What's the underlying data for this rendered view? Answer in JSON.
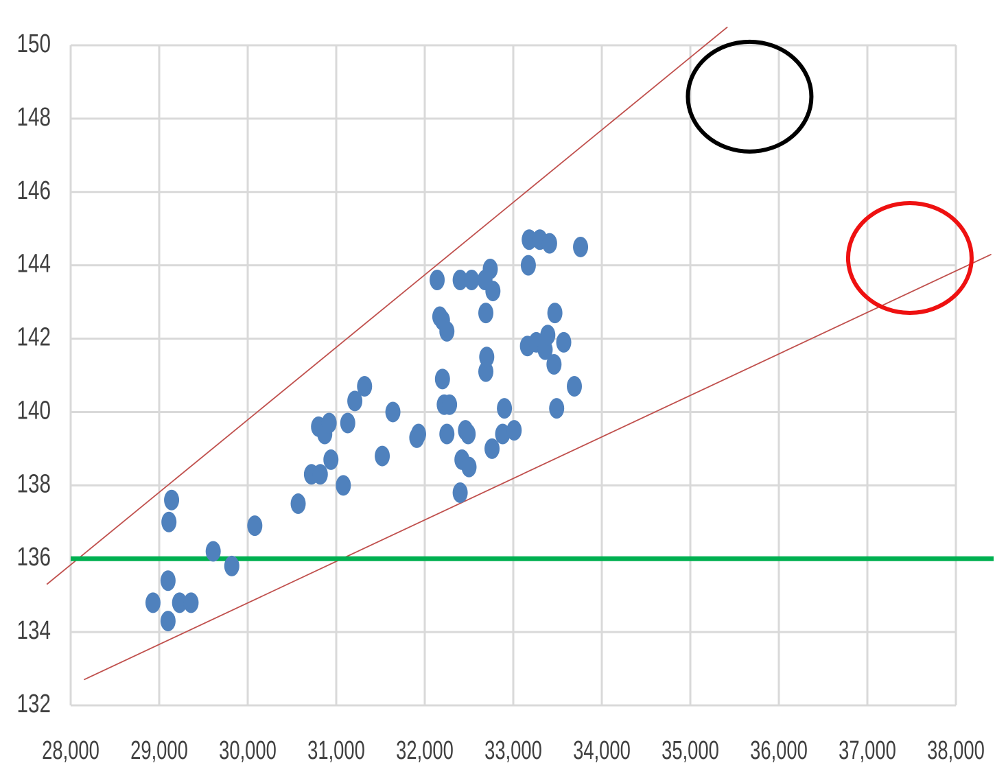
{
  "chart_data": {
    "type": "scatter",
    "title": "",
    "xlabel": "",
    "ylabel": "",
    "xlim": [
      28000,
      38000
    ],
    "ylim": [
      132,
      150
    ],
    "grid": true,
    "x_ticks": [
      28000,
      29000,
      30000,
      31000,
      32000,
      33000,
      34000,
      35000,
      36000,
      37000,
      38000
    ],
    "x_tick_labels": [
      "28,000",
      "29,000",
      "30,000",
      "31,000",
      "32,000",
      "33,000",
      "34,000",
      "35,000",
      "36,000",
      "37,000",
      "38,000"
    ],
    "y_ticks": [
      132,
      134,
      136,
      138,
      140,
      142,
      144,
      146,
      148,
      150
    ],
    "y_tick_labels": [
      "132",
      "134",
      "136",
      "138",
      "140",
      "142",
      "144",
      "146",
      "148",
      "150"
    ],
    "series": [
      {
        "color": "#4f81bd",
        "points": [
          [
            28930,
            134.8
          ],
          [
            29100,
            134.3
          ],
          [
            29100,
            135.4
          ],
          [
            29110,
            137.0
          ],
          [
            29140,
            137.6
          ],
          [
            29230,
            134.8
          ],
          [
            29360,
            134.8
          ],
          [
            29610,
            136.2
          ],
          [
            29820,
            135.8
          ],
          [
            30080,
            136.9
          ],
          [
            30570,
            137.5
          ],
          [
            30720,
            138.3
          ],
          [
            30820,
            138.3
          ],
          [
            30800,
            139.6
          ],
          [
            30870,
            139.4
          ],
          [
            30920,
            139.7
          ],
          [
            30940,
            138.7
          ],
          [
            31080,
            138.0
          ],
          [
            31130,
            139.7
          ],
          [
            31210,
            140.3
          ],
          [
            31320,
            140.7
          ],
          [
            31520,
            138.8
          ],
          [
            31640,
            140.0
          ],
          [
            31910,
            139.3
          ],
          [
            31930,
            139.4
          ],
          [
            32140,
            143.6
          ],
          [
            32170,
            142.6
          ],
          [
            32200,
            140.9
          ],
          [
            32200,
            142.5
          ],
          [
            32220,
            140.2
          ],
          [
            32250,
            142.2
          ],
          [
            32250,
            139.4
          ],
          [
            32280,
            140.2
          ],
          [
            32400,
            143.6
          ],
          [
            32400,
            137.8
          ],
          [
            32420,
            138.7
          ],
          [
            32460,
            139.5
          ],
          [
            32490,
            139.4
          ],
          [
            32500,
            138.5
          ],
          [
            32530,
            143.6
          ],
          [
            32680,
            143.6
          ],
          [
            32690,
            142.7
          ],
          [
            32690,
            141.1
          ],
          [
            32700,
            141.5
          ],
          [
            32740,
            143.9
          ],
          [
            32770,
            143.3
          ],
          [
            32760,
            139.0
          ],
          [
            32880,
            139.4
          ],
          [
            32900,
            140.1
          ],
          [
            33010,
            139.5
          ],
          [
            33160,
            141.8
          ],
          [
            33170,
            144.0
          ],
          [
            33180,
            144.7
          ],
          [
            33260,
            141.9
          ],
          [
            33300,
            144.7
          ],
          [
            33360,
            141.7
          ],
          [
            33390,
            142.1
          ],
          [
            33410,
            144.6
          ],
          [
            33460,
            141.3
          ],
          [
            33470,
            142.7
          ],
          [
            33490,
            140.1
          ],
          [
            33570,
            141.9
          ],
          [
            33690,
            140.7
          ],
          [
            33760,
            144.5
          ]
        ]
      }
    ],
    "reference_lines": [
      {
        "kind": "trend",
        "color": "#c0504d",
        "from": [
          27730,
          135.3
        ],
        "to": [
          35420,
          150.5
        ]
      },
      {
        "kind": "trend",
        "color": "#c0504d",
        "from": [
          28150,
          132.7
        ],
        "to": [
          38400,
          144.3
        ]
      },
      {
        "kind": "horizontal",
        "color": "#00b050",
        "y": 136
      }
    ],
    "annotations": [
      {
        "kind": "ellipse",
        "color": "#000000",
        "center": [
          35670,
          148.6
        ]
      },
      {
        "kind": "ellipse",
        "color": "#ee1111",
        "center": [
          37480,
          144.2
        ]
      }
    ]
  }
}
